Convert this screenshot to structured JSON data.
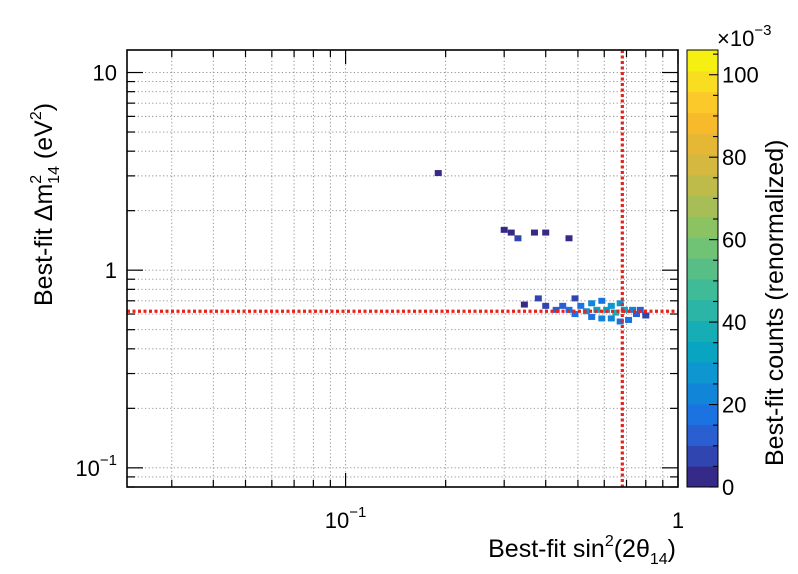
{
  "chart_data": {
    "type": "heatmap",
    "xlabel": {
      "prefix": "Best-fit sin",
      "sup": "2",
      "mid": "(2θ",
      "sub": "14",
      "suffix": ")"
    },
    "ylabel": {
      "prefix": "Best-fit Δm",
      "sup": "2",
      "sub": "14",
      "suffix": " (eV",
      "sup2": "2",
      "end": ")"
    },
    "xscale": "log",
    "yscale": "log",
    "xlim": [
      0.022,
      1
    ],
    "ylim": [
      0.08,
      13
    ],
    "x_ticks": [
      {
        "value": 0.1,
        "base": "10",
        "exp": "−1"
      },
      {
        "value": 1,
        "base": "1",
        "exp": ""
      }
    ],
    "y_ticks": [
      {
        "value": 0.1,
        "base": "10",
        "exp": "−1"
      },
      {
        "value": 1,
        "base": "1",
        "exp": ""
      },
      {
        "value": 10,
        "base": "10",
        "exp": ""
      }
    ],
    "grid": true,
    "reference_lines": {
      "x": 0.68,
      "y": 0.62,
      "color": "#e8231b"
    },
    "colorbar": {
      "label": "Best-fit counts (renormalized)",
      "multiplier": "×10",
      "multiplier_exp": "−3",
      "min": 0,
      "max": 106,
      "ticks": [
        "0",
        "20",
        "40",
        "60",
        "80",
        "100"
      ],
      "tick_values": [
        0,
        20,
        40,
        60,
        80,
        100
      ],
      "palette": [
        "#352a87",
        "#3145b0",
        "#2a5fd1",
        "#1a73e0",
        "#1186d9",
        "#0d96d0",
        "#0aa4c3",
        "#17adb5",
        "#2ab5a7",
        "#40bb98",
        "#57bf86",
        "#70c274",
        "#8bc262",
        "#a6be55",
        "#bfbb4b",
        "#d4b840",
        "#e6b735",
        "#f6ba2b",
        "#fcc92b",
        "#f9dd21",
        "#f5f011"
      ],
      "color": "#0a0f8a"
    },
    "points": [
      {
        "x": 0.19,
        "y": 3.1,
        "value": 2
      },
      {
        "x": 0.3,
        "y": 1.6,
        "value": 2
      },
      {
        "x": 0.315,
        "y": 1.55,
        "value": 2
      },
      {
        "x": 0.33,
        "y": 1.45,
        "value": 3
      },
      {
        "x": 0.37,
        "y": 1.55,
        "value": 2
      },
      {
        "x": 0.4,
        "y": 1.55,
        "value": 2
      },
      {
        "x": 0.47,
        "y": 1.45,
        "value": 2
      },
      {
        "x": 0.345,
        "y": 0.67,
        "value": 2
      },
      {
        "x": 0.38,
        "y": 0.72,
        "value": 3
      },
      {
        "x": 0.4,
        "y": 0.66,
        "value": 4
      },
      {
        "x": 0.43,
        "y": 0.63,
        "value": 6
      },
      {
        "x": 0.45,
        "y": 0.66,
        "value": 5
      },
      {
        "x": 0.47,
        "y": 0.63,
        "value": 8
      },
      {
        "x": 0.49,
        "y": 0.72,
        "value": 4
      },
      {
        "x": 0.49,
        "y": 0.6,
        "value": 7
      },
      {
        "x": 0.51,
        "y": 0.66,
        "value": 9
      },
      {
        "x": 0.53,
        "y": 0.62,
        "value": 12
      },
      {
        "x": 0.55,
        "y": 0.68,
        "value": 10
      },
      {
        "x": 0.55,
        "y": 0.58,
        "value": 8
      },
      {
        "x": 0.57,
        "y": 0.63,
        "value": 14
      },
      {
        "x": 0.59,
        "y": 0.7,
        "value": 9
      },
      {
        "x": 0.59,
        "y": 0.57,
        "value": 10
      },
      {
        "x": 0.61,
        "y": 0.63,
        "value": 16
      },
      {
        "x": 0.63,
        "y": 0.66,
        "value": 13
      },
      {
        "x": 0.63,
        "y": 0.57,
        "value": 11
      },
      {
        "x": 0.65,
        "y": 0.61,
        "value": 18
      },
      {
        "x": 0.67,
        "y": 0.68,
        "value": 12
      },
      {
        "x": 0.67,
        "y": 0.55,
        "value": 9
      },
      {
        "x": 0.69,
        "y": 0.63,
        "value": 15
      },
      {
        "x": 0.71,
        "y": 0.56,
        "value": 7
      },
      {
        "x": 0.73,
        "y": 0.63,
        "value": 10
      },
      {
        "x": 0.75,
        "y": 0.6,
        "value": 6
      },
      {
        "x": 0.77,
        "y": 0.63,
        "value": 5
      },
      {
        "x": 0.8,
        "y": 0.59,
        "value": 3
      }
    ]
  }
}
